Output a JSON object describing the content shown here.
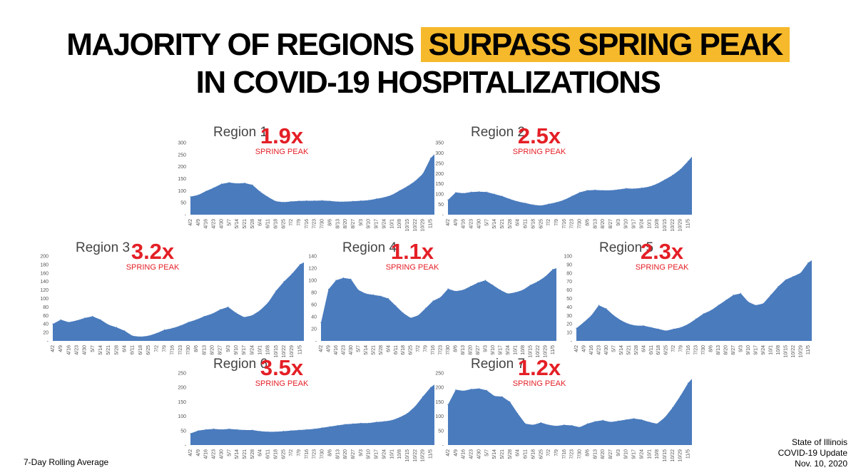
{
  "title": {
    "line1_pre": "MAJORITY OF REGIONS",
    "line1_highlight": "SURPASS SPRING PEAK",
    "line2": "IN COVID-19 HOSPITALIZATIONS",
    "highlight_color": "#f6b92b"
  },
  "footer": {
    "left": "7-Day Rolling Average",
    "right_line1": "State of Illinois",
    "right_line2": "COVID-19 Update",
    "right_line3": "Nov. 10, 2020"
  },
  "colors": {
    "area": "#4a7bbd",
    "multiplier": "#e41f26"
  },
  "chart_data": [
    {
      "type": "area",
      "title": "Region 1",
      "multiplier": "1.9x",
      "note": "SPRING PEAK",
      "ylim": [
        0,
        300
      ],
      "yticks": [
        300,
        250,
        200,
        150,
        100,
        50
      ],
      "zero_label": "-",
      "x": [
        "4/2",
        "4/9",
        "4/16",
        "4/23",
        "4/30",
        "5/7",
        "5/14",
        "5/21",
        "5/28",
        "6/4",
        "6/11",
        "6/18",
        "6/25",
        "7/2",
        "7/9",
        "7/16",
        "7/23",
        "7/30",
        "8/6",
        "8/13",
        "8/20",
        "8/27",
        "9/3",
        "9/10",
        "9/17",
        "9/24",
        "10/1",
        "10/8",
        "10/15",
        "10/22",
        "10/29",
        "11/5"
      ],
      "values": [
        75,
        82,
        98,
        112,
        128,
        134,
        130,
        132,
        124,
        96,
        74,
        56,
        52,
        55,
        57,
        58,
        58,
        59,
        57,
        54,
        54,
        56,
        58,
        60,
        66,
        72,
        82,
        100,
        118,
        140,
        170,
        235
      ],
      "end_value": 252
    },
    {
      "type": "area",
      "title": "Region 2",
      "multiplier": "2.5x",
      "note": "SPRING PEAK",
      "ylim": [
        0,
        350
      ],
      "yticks": [
        350,
        300,
        250,
        200,
        150,
        100,
        50
      ],
      "zero_label": "-",
      "x": [
        "4/2",
        "4/9",
        "4/16",
        "4/23",
        "4/30",
        "5/7",
        "5/14",
        "5/21",
        "5/28",
        "6/4",
        "6/11",
        "6/18",
        "6/25",
        "7/2",
        "7/9",
        "7/16",
        "7/23",
        "7/30",
        "8/6",
        "8/13",
        "8/20",
        "8/27",
        "9/3",
        "9/10",
        "9/17",
        "9/24",
        "10/1",
        "10/8",
        "10/15",
        "10/22",
        "10/29",
        "11/5"
      ],
      "values": [
        72,
        108,
        104,
        110,
        112,
        110,
        100,
        90,
        76,
        64,
        56,
        48,
        44,
        52,
        60,
        72,
        90,
        108,
        118,
        120,
        118,
        118,
        122,
        128,
        126,
        130,
        136,
        150,
        170,
        192,
        220,
        260
      ],
      "end_value": 282
    },
    {
      "type": "area",
      "title": "Region 3",
      "multiplier": "3.2x",
      "note": "SPRING PEAK",
      "ylim": [
        0,
        200
      ],
      "yticks": [
        200,
        180,
        160,
        140,
        120,
        100,
        80,
        60,
        40,
        20
      ],
      "zero_label": "-",
      "x": [
        "4/2",
        "4/9",
        "4/16",
        "4/23",
        "4/30",
        "5/7",
        "5/14",
        "5/21",
        "5/28",
        "6/4",
        "6/11",
        "6/18",
        "6/25",
        "7/2",
        "7/9",
        "7/16",
        "7/23",
        "7/30",
        "8/6",
        "8/13",
        "8/20",
        "8/27",
        "9/3",
        "9/10",
        "9/17",
        "9/24",
        "10/1",
        "10/8",
        "10/15",
        "10/22",
        "10/29",
        "11/5"
      ],
      "values": [
        40,
        50,
        44,
        48,
        54,
        58,
        50,
        38,
        32,
        24,
        12,
        10,
        12,
        18,
        26,
        30,
        36,
        44,
        50,
        58,
        64,
        74,
        80,
        66,
        56,
        60,
        72,
        90,
        118,
        140,
        158,
        180
      ],
      "end_value": 185
    },
    {
      "type": "area",
      "title": "Region 4",
      "multiplier": "1.1x",
      "note": "SPRING PEAK",
      "ylim": [
        0,
        140
      ],
      "yticks": [
        140,
        120,
        100,
        80,
        60,
        40,
        20
      ],
      "zero_label": "-",
      "x": [
        "4/2",
        "4/9",
        "4/16",
        "4/23",
        "4/30",
        "5/7",
        "5/14",
        "5/21",
        "5/28",
        "6/4",
        "6/11",
        "6/18",
        "6/25",
        "7/2",
        "7/9",
        "7/16",
        "7/23",
        "7/30",
        "8/6",
        "8/13",
        "8/20",
        "8/27",
        "9/3",
        "9/10",
        "9/17",
        "9/24",
        "10/1",
        "10/8",
        "10/15",
        "10/22",
        "10/29",
        "11/5"
      ],
      "values": [
        30,
        85,
        100,
        104,
        102,
        84,
        78,
        76,
        74,
        70,
        58,
        46,
        38,
        42,
        54,
        66,
        72,
        86,
        82,
        84,
        90,
        96,
        100,
        92,
        84,
        78,
        80,
        84,
        92,
        98,
        106,
        118
      ],
      "end_value": 120
    },
    {
      "type": "area",
      "title": "Region 5",
      "multiplier": "2.3x",
      "note": "SPRING PEAK",
      "ylim": [
        0,
        100
      ],
      "yticks": [
        100,
        90,
        80,
        70,
        60,
        50,
        40,
        30,
        20,
        10
      ],
      "zero_label": "-",
      "x": [
        "4/2",
        "4/9",
        "4/16",
        "4/23",
        "4/30",
        "5/7",
        "5/14",
        "5/21",
        "5/28",
        "6/4",
        "6/11",
        "6/18",
        "6/25",
        "7/2",
        "7/9",
        "7/16",
        "7/23",
        "7/30",
        "8/6",
        "8/13",
        "8/20",
        "8/27",
        "9/3",
        "9/10",
        "9/17",
        "9/24",
        "10/1",
        "10/8",
        "10/15",
        "10/22",
        "10/29",
        "11/5"
      ],
      "values": [
        15,
        22,
        30,
        42,
        38,
        30,
        24,
        20,
        18,
        18,
        16,
        14,
        12,
        14,
        16,
        20,
        26,
        32,
        36,
        42,
        48,
        54,
        56,
        46,
        42,
        44,
        54,
        64,
        72,
        76,
        80,
        92
      ],
      "end_value": 95
    },
    {
      "type": "area",
      "title": "Region 6",
      "multiplier": "3.5x",
      "note": "SPRING PEAK",
      "ylim": [
        0,
        250
      ],
      "yticks": [
        250,
        200,
        150,
        100,
        50
      ],
      "zero_label": "-",
      "x": [
        "4/2",
        "4/9",
        "4/16",
        "4/23",
        "4/30",
        "5/7",
        "5/14",
        "5/21",
        "5/28",
        "6/4",
        "6/11",
        "6/18",
        "6/25",
        "7/2",
        "7/9",
        "7/16",
        "7/23",
        "7/30",
        "8/6",
        "8/13",
        "8/20",
        "8/27",
        "9/3",
        "9/10",
        "9/17",
        "9/24",
        "10/1",
        "10/8",
        "10/15",
        "10/22",
        "10/29",
        "11/5"
      ],
      "values": [
        40,
        50,
        54,
        56,
        54,
        56,
        54,
        52,
        52,
        48,
        46,
        46,
        48,
        50,
        52,
        54,
        56,
        60,
        64,
        68,
        72,
        74,
        76,
        76,
        80,
        82,
        86,
        96,
        110,
        134,
        168,
        200
      ],
      "end_value": 210
    },
    {
      "type": "area",
      "title": "Region 7",
      "multiplier": "1.2x",
      "note": "SPRING PEAK",
      "ylim": [
        0,
        250
      ],
      "yticks": [
        250,
        200,
        150,
        100,
        50
      ],
      "zero_label": "-",
      "x": [
        "4/2",
        "4/9",
        "4/16",
        "4/23",
        "4/30",
        "5/7",
        "5/14",
        "5/21",
        "5/28",
        "6/4",
        "6/11",
        "6/18",
        "6/25",
        "7/2",
        "7/9",
        "7/16",
        "7/23",
        "7/30",
        "8/6",
        "8/13",
        "8/20",
        "8/27",
        "9/3",
        "9/10",
        "9/17",
        "9/24",
        "10/1",
        "10/8",
        "10/15",
        "10/22",
        "10/29",
        "11/5"
      ],
      "values": [
        140,
        192,
        188,
        194,
        196,
        190,
        170,
        168,
        150,
        110,
        74,
        70,
        78,
        70,
        66,
        70,
        68,
        62,
        74,
        82,
        86,
        80,
        84,
        88,
        92,
        88,
        80,
        74,
        96,
        130,
        170,
        215
      ],
      "end_value": 230
    }
  ]
}
